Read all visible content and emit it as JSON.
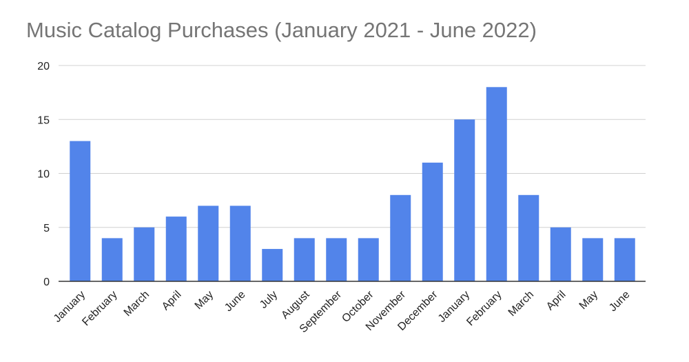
{
  "chart_data": {
    "type": "bar",
    "title": "Music Catalog Purchases (January 2021 - June 2022)",
    "categories": [
      "January",
      "February",
      "March",
      "April",
      "May",
      "June",
      "July",
      "August",
      "September",
      "October",
      "November",
      "December",
      "January",
      "February",
      "March",
      "April",
      "May",
      "June"
    ],
    "values": [
      13,
      4,
      5,
      6,
      7,
      7,
      3,
      4,
      4,
      4,
      8,
      11,
      15,
      18,
      8,
      5,
      4,
      4
    ],
    "color": "#5284ea",
    "ylim": [
      0,
      20
    ],
    "yticks": [
      0,
      5,
      10,
      15,
      20
    ],
    "grid": true
  }
}
